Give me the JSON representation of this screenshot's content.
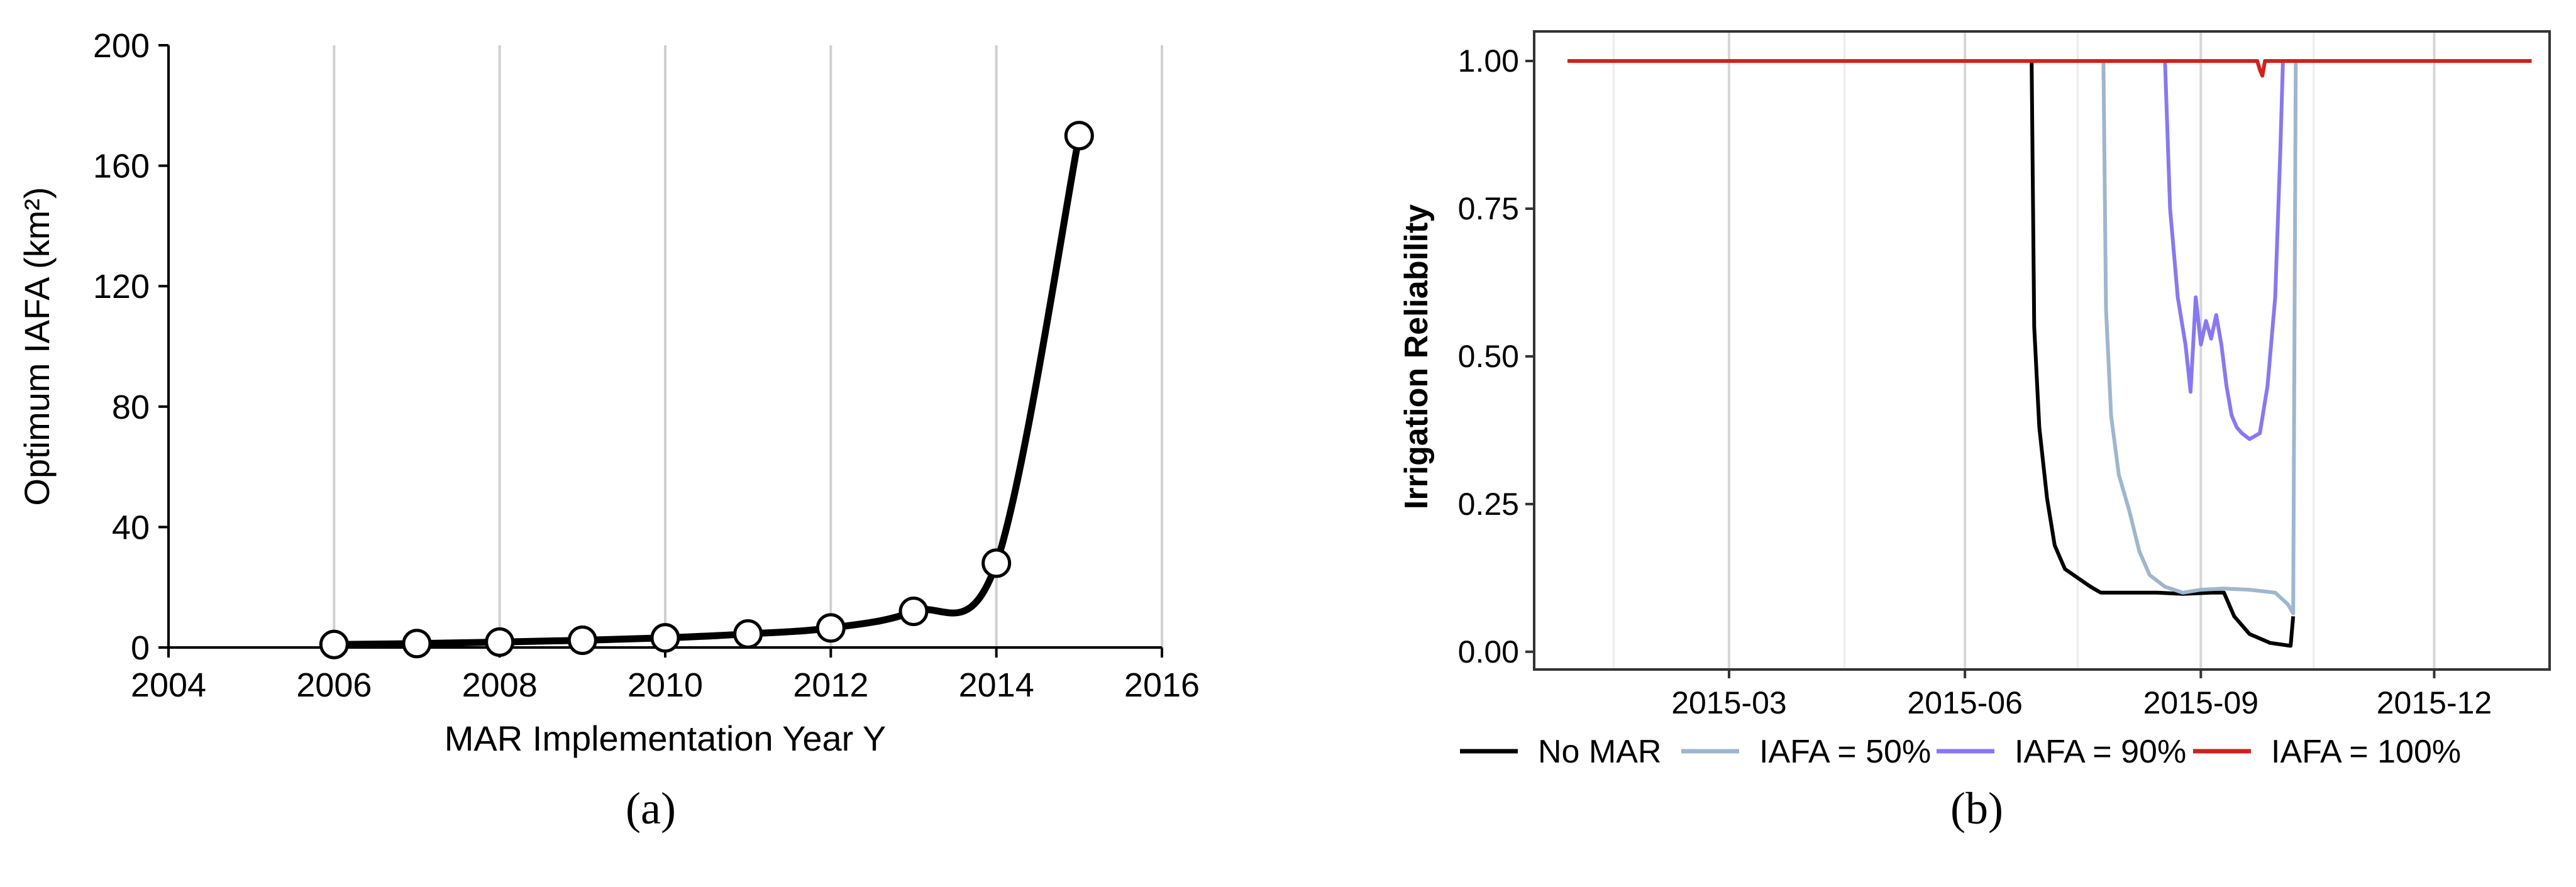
{
  "chart_data": [
    {
      "panel": "(a)",
      "type": "line",
      "title": "",
      "xlabel": "MAR Implementation Year Y",
      "ylabel": "Optimum IAFA (km²)",
      "xlim": [
        2004,
        2016
      ],
      "ylim": [
        0,
        200
      ],
      "xticks": [
        2004,
        2006,
        2008,
        2010,
        2012,
        2014,
        2016
      ],
      "yticks": [
        0,
        40,
        80,
        120,
        160,
        200
      ],
      "vertical_grid": true,
      "series": [
        {
          "x": [
            2006,
            2007,
            2008,
            2009,
            2010,
            2011,
            2012,
            2013,
            2014,
            2015
          ],
          "y": [
            1,
            1.3,
            1.8,
            2.4,
            3.2,
            4.5,
            6.5,
            12,
            28,
            170
          ],
          "markers": "open-circle",
          "color": "#000000"
        }
      ]
    },
    {
      "panel": "(b)",
      "type": "line",
      "title": "",
      "xlabel": "",
      "ylabel": "Irrigation Reliability",
      "xlim": [
        "2014-12-15",
        "2016-01-15"
      ],
      "ylim": [
        -0.03,
        1.05
      ],
      "xticks": [
        "2015-03",
        "2015-06",
        "2015-09",
        "2015-12"
      ],
      "yticks": [
        "0.00",
        "0.25",
        "0.50",
        "0.75",
        "1.00"
      ],
      "vertical_grid": true,
      "legend_position": "bottom",
      "series": [
        {
          "name": "No MAR",
          "color": "#000000",
          "points": [
            [
              "2014-12-28",
              1.0
            ],
            [
              "2015-06-27",
              1.0
            ],
            [
              "2015-06-28",
              0.55
            ],
            [
              "2015-06-30",
              0.38
            ],
            [
              "2015-07-03",
              0.26
            ],
            [
              "2015-07-06",
              0.18
            ],
            [
              "2015-07-10",
              0.14
            ],
            [
              "2015-07-15",
              0.125
            ],
            [
              "2015-07-20",
              0.11
            ],
            [
              "2015-07-24",
              0.1
            ],
            [
              "2015-08-05",
              0.1
            ],
            [
              "2015-08-15",
              0.1
            ],
            [
              "2015-08-25",
              0.098
            ],
            [
              "2015-09-05",
              0.1
            ],
            [
              "2015-09-10",
              0.1
            ],
            [
              "2015-09-14",
              0.06
            ],
            [
              "2015-09-20",
              0.03
            ],
            [
              "2015-09-28",
              0.015
            ],
            [
              "2015-10-06",
              0.01
            ],
            [
              "2015-10-07",
              0.06
            ]
          ]
        },
        {
          "name": "IAFA = 50%",
          "color": "#9fb6cd",
          "points": [
            [
              "2014-12-28",
              1.0
            ],
            [
              "2015-07-25",
              1.0
            ],
            [
              "2015-07-26",
              0.58
            ],
            [
              "2015-07-28",
              0.4
            ],
            [
              "2015-07-31",
              0.3
            ],
            [
              "2015-08-04",
              0.24
            ],
            [
              "2015-08-08",
              0.17
            ],
            [
              "2015-08-12",
              0.13
            ],
            [
              "2015-08-18",
              0.11
            ],
            [
              "2015-08-25",
              0.1
            ],
            [
              "2015-09-01",
              0.105
            ],
            [
              "2015-09-10",
              0.107
            ],
            [
              "2015-09-20",
              0.105
            ],
            [
              "2015-09-30",
              0.1
            ],
            [
              "2015-10-05",
              0.08
            ],
            [
              "2015-10-07",
              0.065
            ],
            [
              "2015-10-08",
              1.0
            ]
          ]
        },
        {
          "name": "IAFA = 90%",
          "color": "#8878f0",
          "points": [
            [
              "2014-12-28",
              1.0
            ],
            [
              "2015-08-18",
              1.0
            ],
            [
              "2015-08-20",
              0.75
            ],
            [
              "2015-08-23",
              0.6
            ],
            [
              "2015-08-26",
              0.52
            ],
            [
              "2015-08-28",
              0.44
            ],
            [
              "2015-08-30",
              0.6
            ],
            [
              "2015-09-01",
              0.52
            ],
            [
              "2015-09-03",
              0.56
            ],
            [
              "2015-09-05",
              0.53
            ],
            [
              "2015-09-07",
              0.57
            ],
            [
              "2015-09-09",
              0.52
            ],
            [
              "2015-09-11",
              0.45
            ],
            [
              "2015-09-13",
              0.4
            ],
            [
              "2015-09-15",
              0.38
            ],
            [
              "2015-09-17",
              0.37
            ],
            [
              "2015-09-20",
              0.36
            ],
            [
              "2015-09-24",
              0.37
            ],
            [
              "2015-09-27",
              0.45
            ],
            [
              "2015-09-30",
              0.6
            ],
            [
              "2015-10-02",
              0.85
            ],
            [
              "2015-10-03",
              1.0
            ]
          ]
        },
        {
          "name": "IAFA = 100%",
          "color": "#d41f1f",
          "points": [
            [
              "2014-12-28",
              1.0
            ],
            [
              "2015-09-23",
              1.0
            ],
            [
              "2015-09-24",
              0.985
            ],
            [
              "2015-09-25",
              0.975
            ],
            [
              "2015-09-26",
              1.0
            ],
            [
              "2016-01-08",
              1.0
            ]
          ]
        }
      ]
    }
  ],
  "panel_labels": {
    "a": "(a)",
    "b": "(b)"
  }
}
